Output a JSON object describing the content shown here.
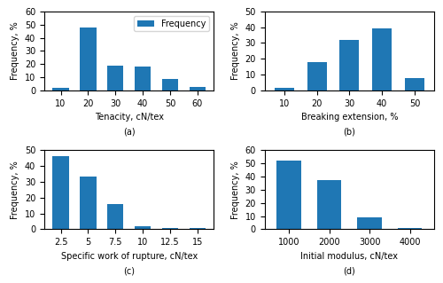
{
  "chart_data": [
    {
      "type": "bar",
      "categories": [
        "10",
        "20",
        "30",
        "40",
        "50",
        "60"
      ],
      "series": [
        {
          "name": "Frequency",
          "values": [
            2,
            48,
            19,
            18,
            9,
            3
          ]
        }
      ],
      "xlabel": "Tenacity, cN/tex",
      "ylabel": "Frequency, %",
      "ylim": [
        0,
        60
      ],
      "yticks": [
        0,
        10,
        20,
        30,
        40,
        50,
        60
      ],
      "annotations": [
        "(a)"
      ],
      "legend": "upper right"
    },
    {
      "type": "bar",
      "categories": [
        "10",
        "20",
        "30",
        "40",
        "50"
      ],
      "values": [
        2,
        18,
        32,
        39,
        8
      ],
      "xlabel": "Breaking extension, %",
      "ylabel": "Frequency, %",
      "ylim": [
        0,
        50
      ],
      "yticks": [
        0,
        10,
        20,
        30,
        40,
        50
      ],
      "annotations": [
        "(b)"
      ]
    },
    {
      "type": "bar",
      "categories": [
        "2.5",
        "5",
        "7.5",
        "10",
        "12.5",
        "15"
      ],
      "values": [
        46,
        33,
        16,
        2,
        1,
        1
      ],
      "xlabel": "Specific work of rupture, cN/tex",
      "ylabel": "Frequency, %",
      "ylim": [
        0,
        50
      ],
      "yticks": [
        0,
        10,
        20,
        30,
        40,
        50
      ],
      "annotations": [
        "(c)"
      ]
    },
    {
      "type": "bar",
      "categories": [
        "1000",
        "2000",
        "3000",
        "4000"
      ],
      "values": [
        52,
        37,
        9,
        1
      ],
      "xlabel": "Initial modulus, cN/tex",
      "ylabel": "Frequency, %",
      "ylim": [
        0,
        60
      ],
      "yticks": [
        0,
        10,
        20,
        30,
        40,
        50,
        60
      ],
      "annotations": [
        "(d)"
      ]
    }
  ]
}
